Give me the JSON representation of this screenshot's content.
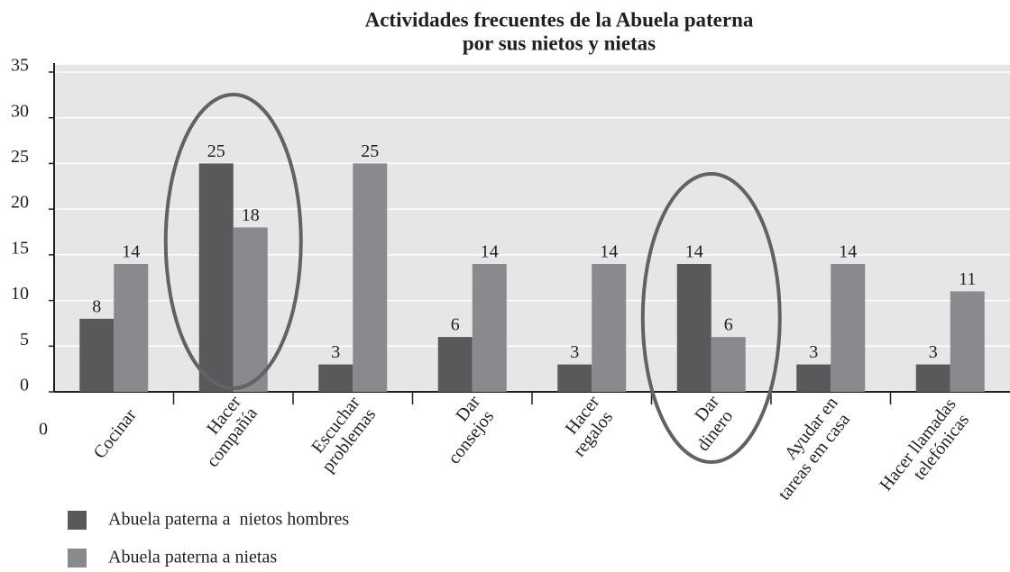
{
  "chart_data": {
    "type": "bar",
    "title": [
      "Actividades frecuentes de la Abuela paterna",
      "por sus nietos y nietas"
    ],
    "categories": [
      [
        "Cocinar"
      ],
      [
        "Hacer",
        "compañía"
      ],
      [
        "Escuchar",
        "problemas"
      ],
      [
        "Dar",
        "consejos"
      ],
      [
        "Hacer",
        "regalos"
      ],
      [
        "Dar",
        "dinero"
      ],
      [
        "Ayudar en",
        "tareas em casa"
      ],
      [
        "Hacer llamadas",
        "telefónicas"
      ]
    ],
    "series": [
      {
        "name": "Abuela paterna a  nietos hombres",
        "color": "#58595b",
        "values": [
          8,
          25,
          3,
          6,
          3,
          14,
          3,
          3
        ]
      },
      {
        "name": "Abuela paterna a nietas",
        "color": "#898a8d",
        "values": [
          14,
          18,
          25,
          14,
          14,
          6,
          14,
          11
        ]
      }
    ],
    "ylim": [
      0,
      35
    ],
    "yticks": [
      0,
      5,
      10,
      15,
      20,
      25,
      30,
      35
    ],
    "grid": true,
    "x_origin_label": "0"
  }
}
